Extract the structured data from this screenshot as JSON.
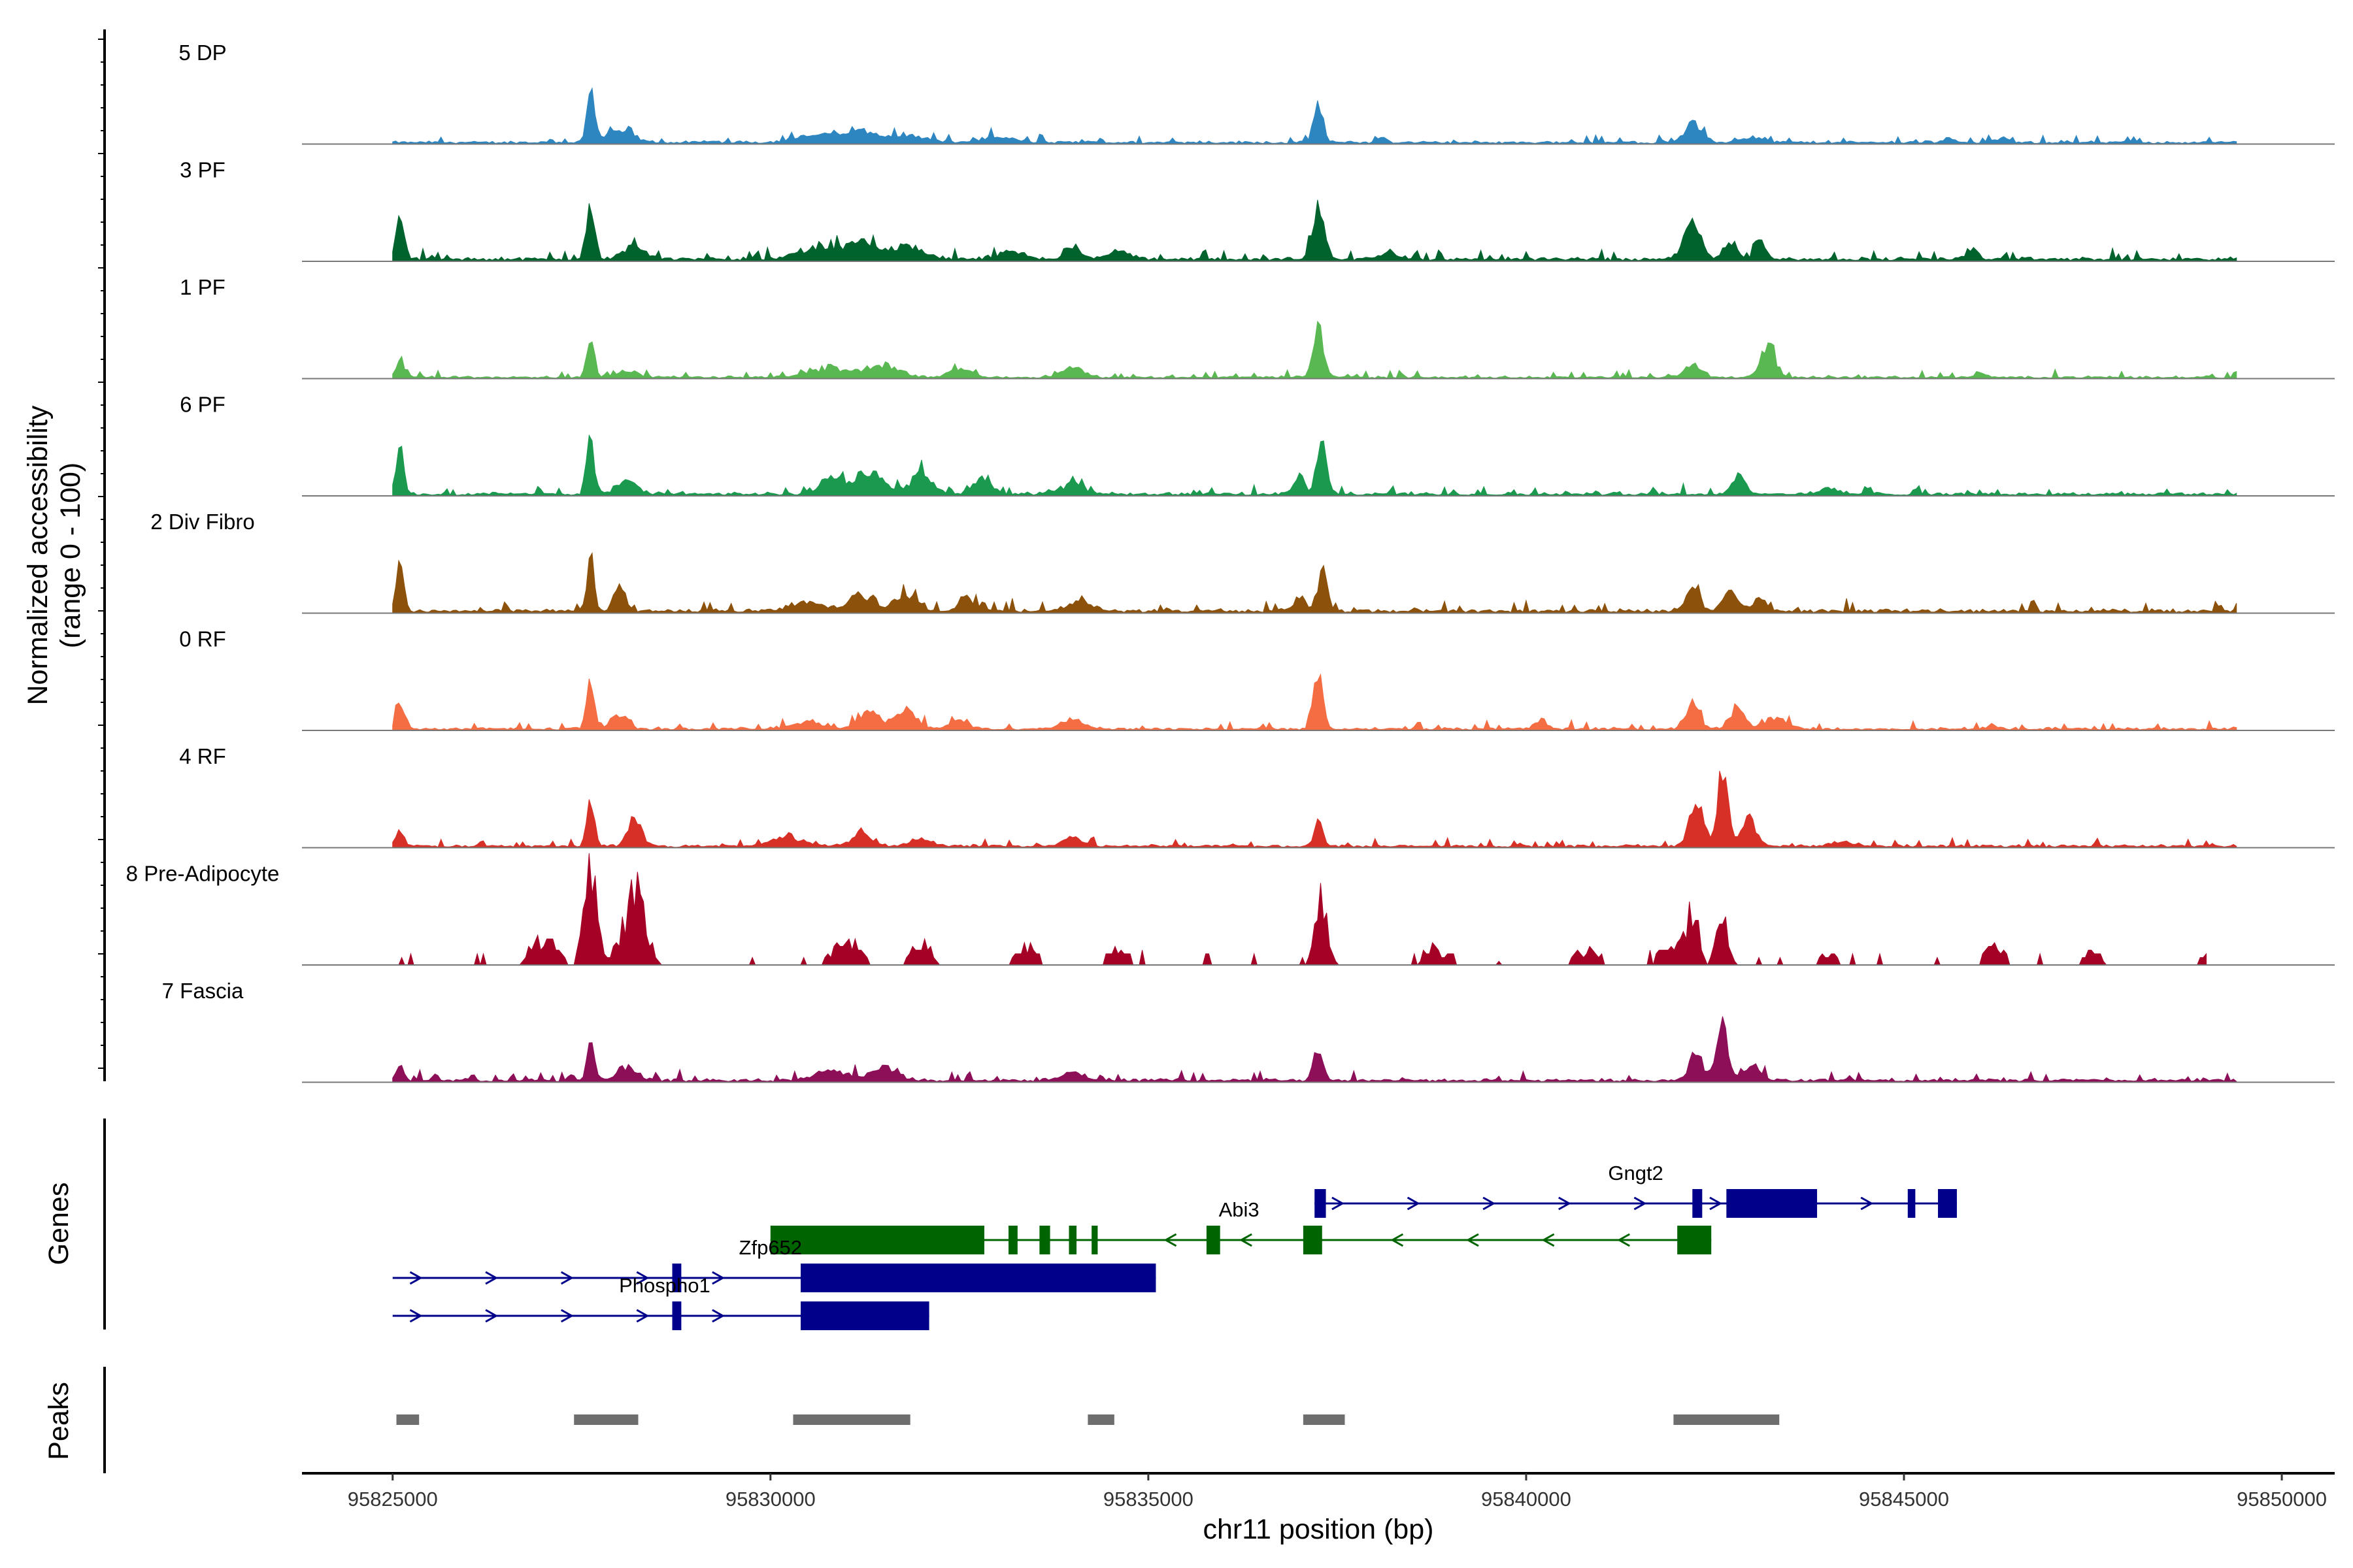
{
  "chart_data": {
    "type": "area",
    "title": "",
    "xlabel": "chr11 position (bp)",
    "xlim": [
      95823800,
      95850700
    ],
    "x_ticks": [
      "95825000",
      "95830000",
      "95835000",
      "95840000",
      "95845000",
      "95850000"
    ],
    "x_tick_values": [
      95825000,
      95830000,
      95835000,
      95840000,
      95845000,
      95850000
    ],
    "coverage_ylabel": [
      "Normalized accessibility",
      "(range 0 - 100)"
    ],
    "coverage_range": [
      0,
      100
    ],
    "tracks": [
      {
        "name": "5 DP",
        "color": "#2e86c1",
        "end": 95849400,
        "noise": 6,
        "peaks": [
          [
            95827620,
            90,
            70
          ],
          [
            95828000,
            18,
            260
          ],
          [
            95830700,
            12,
            450
          ],
          [
            95831200,
            16,
            300
          ],
          [
            95831800,
            12,
            350
          ],
          [
            95833000,
            8,
            300
          ],
          [
            95837250,
            58,
            90
          ],
          [
            95838100,
            8,
            80
          ],
          [
            95842200,
            30,
            160
          ],
          [
            95843000,
            10,
            200
          ],
          [
            95845600,
            10,
            80
          ],
          [
            95846300,
            8,
            100
          ]
        ]
      },
      {
        "name": "3 PF",
        "color": "#00632e",
        "end": 95849400,
        "noise": 8,
        "peaks": [
          [
            95825100,
            65,
            80
          ],
          [
            95827620,
            80,
            80
          ],
          [
            95828200,
            22,
            200
          ],
          [
            95830600,
            18,
            350
          ],
          [
            95831200,
            25,
            300
          ],
          [
            95831800,
            22,
            300
          ],
          [
            95833200,
            12,
            250
          ],
          [
            95834000,
            20,
            150
          ],
          [
            95834600,
            14,
            200
          ],
          [
            95837250,
            85,
            110
          ],
          [
            95838200,
            10,
            200
          ],
          [
            95842200,
            58,
            150
          ],
          [
            95842700,
            30,
            120
          ],
          [
            95843100,
            35,
            100
          ],
          [
            95845900,
            18,
            100
          ]
        ]
      },
      {
        "name": "1 PF",
        "color": "#5ab852",
        "end": 95849400,
        "noise": 5,
        "peaks": [
          [
            95825100,
            25,
            80
          ],
          [
            95827620,
            62,
            70
          ],
          [
            95828100,
            10,
            200
          ],
          [
            95830800,
            14,
            400
          ],
          [
            95831500,
            18,
            300
          ],
          [
            95832500,
            15,
            200
          ],
          [
            95834000,
            16,
            200
          ],
          [
            95837250,
            95,
            90
          ],
          [
            95842200,
            20,
            150
          ],
          [
            95843200,
            50,
            140
          ],
          [
            95846000,
            8,
            100
          ]
        ]
      },
      {
        "name": "6 PF",
        "color": "#1b9a4f",
        "end": 95849400,
        "noise": 7,
        "peaks": [
          [
            95825100,
            90,
            70
          ],
          [
            95827620,
            90,
            70
          ],
          [
            95828100,
            20,
            200
          ],
          [
            95830800,
            30,
            200
          ],
          [
            95831300,
            38,
            250
          ],
          [
            95832000,
            32,
            200
          ],
          [
            95832800,
            28,
            160
          ],
          [
            95834000,
            18,
            200
          ],
          [
            95837000,
            30,
            100
          ],
          [
            95837300,
            80,
            90
          ],
          [
            95842800,
            30,
            120
          ],
          [
            95844000,
            8,
            200
          ]
        ]
      },
      {
        "name": "2 Div Fibro",
        "color": "#8c510a",
        "end": 95849400,
        "noise": 8,
        "peaks": [
          [
            95825100,
            75,
            70
          ],
          [
            95827620,
            90,
            70
          ],
          [
            95828000,
            38,
            100
          ],
          [
            95830500,
            14,
            300
          ],
          [
            95831200,
            28,
            200
          ],
          [
            95831800,
            30,
            200
          ],
          [
            95832600,
            22,
            150
          ],
          [
            95834100,
            18,
            200
          ],
          [
            95837000,
            25,
            100
          ],
          [
            95837300,
            65,
            90
          ],
          [
            95842200,
            45,
            120
          ],
          [
            95842700,
            30,
            150
          ],
          [
            95843100,
            24,
            120
          ]
        ]
      },
      {
        "name": "0 RF",
        "color": "#f46d43",
        "end": 95849400,
        "noise": 6,
        "peaks": [
          [
            95825100,
            48,
            70
          ],
          [
            95827620,
            80,
            70
          ],
          [
            95828000,
            24,
            150
          ],
          [
            95830500,
            12,
            300
          ],
          [
            95831300,
            28,
            200
          ],
          [
            95831800,
            30,
            200
          ],
          [
            95832500,
            16,
            150
          ],
          [
            95834000,
            16,
            200
          ],
          [
            95837250,
            85,
            90
          ],
          [
            95840200,
            16,
            100
          ],
          [
            95842200,
            42,
            120
          ],
          [
            95842800,
            38,
            130
          ],
          [
            95843300,
            18,
            200
          ]
        ]
      },
      {
        "name": "4 RF",
        "color": "#d73027",
        "end": 95849400,
        "noise": 6,
        "peaks": [
          [
            95825100,
            28,
            70
          ],
          [
            95827620,
            85,
            70
          ],
          [
            95828200,
            52,
            120
          ],
          [
            95830200,
            14,
            300
          ],
          [
            95831200,
            18,
            200
          ],
          [
            95832000,
            12,
            200
          ],
          [
            95834000,
            14,
            200
          ],
          [
            95837250,
            40,
            80
          ],
          [
            95842250,
            85,
            120
          ],
          [
            95842600,
            120,
            100
          ],
          [
            95842950,
            40,
            150
          ],
          [
            95844200,
            8,
            200
          ]
        ]
      },
      {
        "name": "8 Pre-Adipocyte",
        "color": "#a50026",
        "end": 95849000,
        "noise": 0,
        "sparse": true,
        "peaks": [
          [
            95827000,
            45,
            250
          ],
          [
            95827620,
            180,
            120
          ],
          [
            95828200,
            130,
            220
          ],
          [
            95831000,
            45,
            250
          ],
          [
            95832000,
            40,
            200
          ],
          [
            95833400,
            30,
            200
          ],
          [
            95834600,
            30,
            200
          ],
          [
            95837300,
            120,
            120
          ],
          [
            95838800,
            30,
            250
          ],
          [
            95840800,
            30,
            250
          ],
          [
            95841900,
            40,
            200
          ],
          [
            95842200,
            95,
            120
          ],
          [
            95842600,
            80,
            120
          ],
          [
            95844000,
            20,
            200
          ],
          [
            95846200,
            30,
            200
          ],
          [
            95847500,
            30,
            150
          ],
          [
            95849000,
            20,
            150
          ]
        ]
      },
      {
        "name": "7 Fascia",
        "color": "#8c0f58",
        "end": 95849400,
        "noise": 7,
        "peaks": [
          [
            95825100,
            28,
            70
          ],
          [
            95827620,
            60,
            70
          ],
          [
            95828100,
            20,
            200
          ],
          [
            95830800,
            16,
            300
          ],
          [
            95831500,
            22,
            250
          ],
          [
            95834000,
            16,
            200
          ],
          [
            95837250,
            50,
            90
          ],
          [
            95842250,
            45,
            120
          ],
          [
            95842600,
            85,
            110
          ],
          [
            95843000,
            25,
            150
          ]
        ]
      }
    ],
    "genes": [
      {
        "name": "Gngt2",
        "strand": "+",
        "color": "#00008b",
        "start": 95837200,
        "end": 95845700,
        "row": 0,
        "exons": [
          [
            95837200,
            95837350
          ],
          [
            95842200,
            95842330
          ],
          [
            95842650,
            95843850
          ],
          [
            95845050,
            95845150
          ],
          [
            95845450,
            95845700
          ]
        ],
        "label_pos": 95841450,
        "label_above": true
      },
      {
        "name": "Abi3",
        "strand": "-",
        "color": "#006400",
        "start": 95830000,
        "end": 95842450,
        "row": 1,
        "exons": [
          [
            95830000,
            95832830
          ],
          [
            95833150,
            95833270
          ],
          [
            95833560,
            95833700
          ],
          [
            95833950,
            95834050
          ],
          [
            95834250,
            95834330
          ],
          [
            95835770,
            95835950
          ],
          [
            95837050,
            95837300
          ],
          [
            95842000,
            95842450
          ]
        ],
        "label_pos": 95836200,
        "label_above": true
      },
      {
        "name": "Zfp652",
        "strand": "+",
        "color": "#00008b",
        "start": 95825000,
        "end": 95835100,
        "row": 2,
        "exons": [
          [
            95828700,
            95828820
          ],
          [
            95830400,
            95835100
          ]
        ],
        "label_pos": 95830000,
        "label_above": true
      },
      {
        "name": "Phospho1",
        "strand": "+",
        "color": "#00008b",
        "start": 95825000,
        "end": 95832100,
        "row": 3,
        "exons": [
          [
            95828700,
            95828820
          ],
          [
            95830400,
            95832100
          ]
        ],
        "label_pos": 95828600,
        "label_above": true
      }
    ],
    "peaks": [
      [
        95825050,
        95825350
      ],
      [
        95827400,
        95828250
      ],
      [
        95830300,
        95831850
      ],
      [
        95834200,
        95834550
      ],
      [
        95837050,
        95837600
      ],
      [
        95841950,
        95843350
      ]
    ],
    "panel_titles": {
      "genes": "Genes",
      "peaks": "Peaks"
    }
  }
}
